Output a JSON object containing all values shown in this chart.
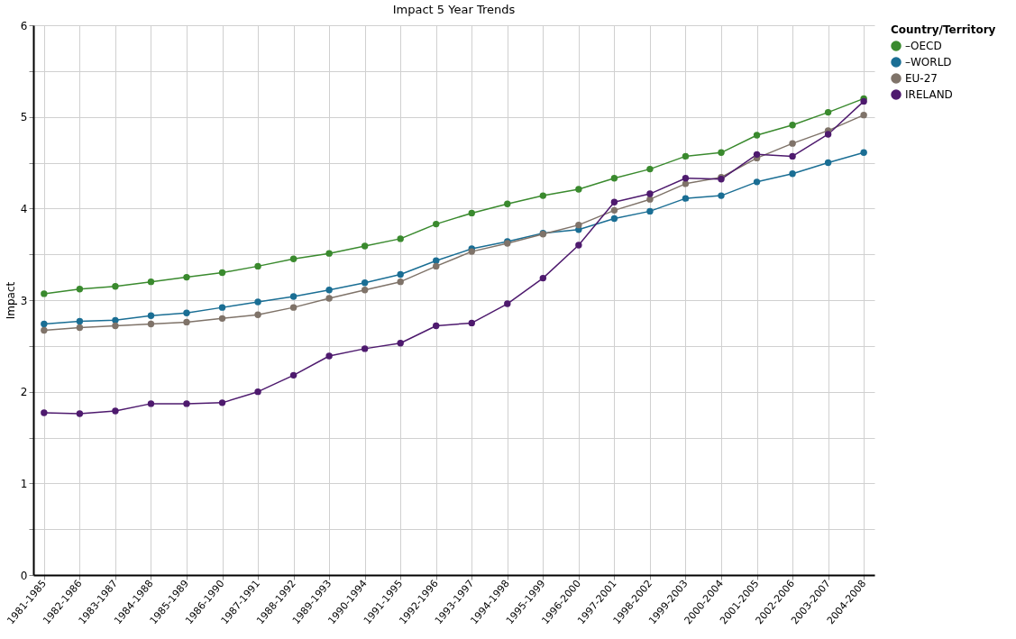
{
  "chart_data": {
    "type": "line",
    "title": "Impact 5 Year Trends",
    "ylabel": "Impact",
    "legend_title": "Country/Territory",
    "categories": [
      "1981-1985",
      "1982-1986",
      "1983-1987",
      "1984-1988",
      "1985-1989",
      "1986-1990",
      "1987-1991",
      "1988-1992",
      "1989-1993",
      "1990-1994",
      "1991-1995",
      "1992-1996",
      "1993-1997",
      "1994-1998",
      "1995-1999",
      "1996-2000",
      "1997-2001",
      "1998-2002",
      "1999-2003",
      "2000-2004",
      "2001-2005",
      "2002-2006",
      "2003-2007",
      "2004-2008"
    ],
    "series": [
      {
        "name": "–OECD",
        "color": "#3a8a2e",
        "values": [
          3.07,
          3.12,
          3.15,
          3.2,
          3.25,
          3.3,
          3.37,
          3.45,
          3.51,
          3.59,
          3.67,
          3.83,
          3.95,
          4.05,
          4.14,
          4.21,
          4.33,
          4.43,
          4.57,
          4.61,
          4.8,
          4.91,
          5.05,
          5.2
        ]
      },
      {
        "name": "–WORLD",
        "color": "#1a6e94",
        "values": [
          2.74,
          2.77,
          2.78,
          2.83,
          2.86,
          2.92,
          2.98,
          3.04,
          3.11,
          3.19,
          3.28,
          3.43,
          3.56,
          3.64,
          3.73,
          3.77,
          3.89,
          3.97,
          4.11,
          4.14,
          4.29,
          4.38,
          4.5,
          4.61
        ]
      },
      {
        "name": "EU-27",
        "color": "#7f7369",
        "values": [
          2.67,
          2.7,
          2.72,
          2.74,
          2.76,
          2.8,
          2.84,
          2.92,
          3.02,
          3.11,
          3.2,
          3.37,
          3.53,
          3.62,
          3.72,
          3.82,
          3.98,
          4.1,
          4.27,
          4.34,
          4.55,
          4.71,
          4.85,
          5.02
        ]
      },
      {
        "name": "IRELAND",
        "color": "#4e1a6e",
        "values": [
          1.77,
          1.76,
          1.79,
          1.87,
          1.87,
          1.88,
          2.0,
          2.18,
          2.39,
          2.47,
          2.53,
          2.72,
          2.75,
          2.96,
          3.24,
          3.6,
          4.07,
          4.16,
          4.33,
          4.32,
          4.59,
          4.57,
          4.81,
          5.17
        ]
      }
    ],
    "ylim": [
      0,
      6
    ],
    "yticks": [
      0,
      {
        "value": 0.5,
        "label": null
      },
      1,
      {
        "value": 1.5,
        "label": null
      },
      2,
      {
        "value": 2.5,
        "label": null
      },
      3,
      {
        "value": 3.5,
        "label": null
      },
      4,
      {
        "value": 4.5,
        "label": null
      },
      5,
      {
        "value": 5.5,
        "label": null
      },
      6
    ],
    "grid": true,
    "legend": "top right",
    "marker": "circle",
    "line_style": "solid"
  }
}
